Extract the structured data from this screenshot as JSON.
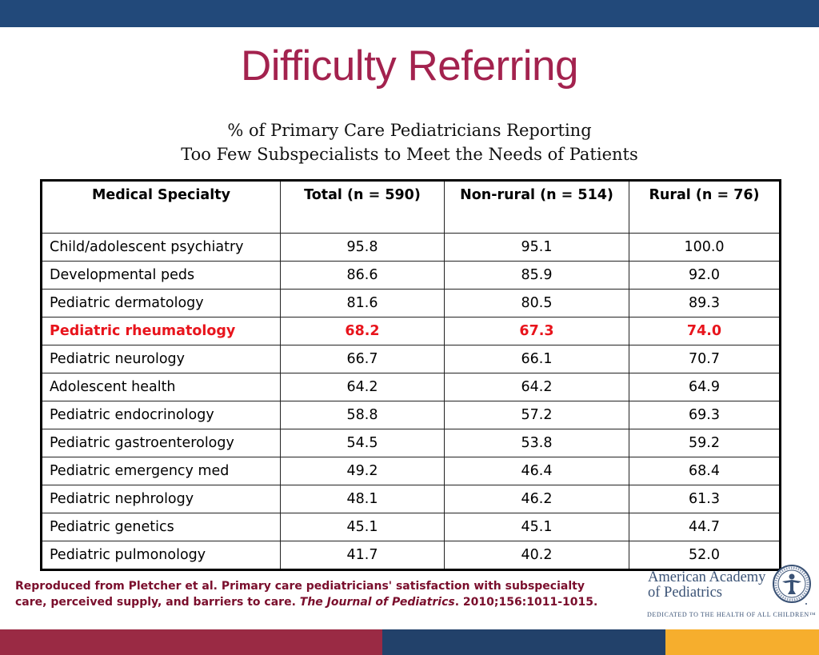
{
  "slide": {
    "title": "Difficulty Referring",
    "subtitle_lines": [
      "% of Primary Care Pediatricians Reporting",
      "Too Few Subspecialists to Meet the Needs of Patients"
    ],
    "colors": {
      "top_band": "#22497a",
      "title": "#a3224e",
      "highlight": "#e8141c",
      "citation": "#7a0e2c",
      "band_red": "#9a2a44",
      "band_blue": "#22416a",
      "band_gold": "#f6ae2d"
    }
  },
  "table": {
    "headers": [
      "Medical Specialty",
      "Total (n = 590)",
      "Non-rural (n = 514)",
      "Rural (n = 76)"
    ],
    "rows": [
      {
        "specialty": "Child/adolescent psychiatry",
        "total": "95.8",
        "nonrural": "95.1",
        "rural": "100.0",
        "highlight": false
      },
      {
        "specialty": "Developmental peds",
        "total": "86.6",
        "nonrural": "85.9",
        "rural": "92.0",
        "highlight": false
      },
      {
        "specialty": "Pediatric dermatology",
        "total": "81.6",
        "nonrural": "80.5",
        "rural": "89.3",
        "highlight": false
      },
      {
        "specialty": "Pediatric rheumatology",
        "total": "68.2",
        "nonrural": "67.3",
        "rural": "74.0",
        "highlight": true
      },
      {
        "specialty": "Pediatric neurology",
        "total": "66.7",
        "nonrural": "66.1",
        "rural": "70.7",
        "highlight": false
      },
      {
        "specialty": "Adolescent health",
        "total": "64.2",
        "nonrural": "64.2",
        "rural": "64.9",
        "highlight": false
      },
      {
        "specialty": "Pediatric endocrinology",
        "total": "58.8",
        "nonrural": "57.2",
        "rural": "69.3",
        "highlight": false
      },
      {
        "specialty": "Pediatric gastroenterology",
        "total": "54.5",
        "nonrural": "53.8",
        "rural": "59.2",
        "highlight": false
      },
      {
        "specialty": "Pediatric emergency med",
        "total": "49.2",
        "nonrural": "46.4",
        "rural": "68.4",
        "highlight": false
      },
      {
        "specialty": "Pediatric nephrology",
        "total": "48.1",
        "nonrural": "46.2",
        "rural": "61.3",
        "highlight": false
      },
      {
        "specialty": "Pediatric genetics",
        "total": "45.1",
        "nonrural": "45.1",
        "rural": "44.7",
        "highlight": false
      },
      {
        "specialty": "Pediatric pulmonology",
        "total": "41.7",
        "nonrural": "40.2",
        "rural": "52.0",
        "highlight": false
      }
    ]
  },
  "citation": {
    "line1": "Reproduced from Pletcher et al. Primary care pediatricians' satisfaction with subspecialty",
    "line2_prefix": "care, perceived supply, and barriers to care. ",
    "journal": "The Journal of Pediatrics",
    "line2_suffix": ". 2010;156:1011-1015."
  },
  "logo": {
    "name_line1": "American Academy",
    "name_line2": "of Pediatrics",
    "tagline": "DEDICATED TO THE HEALTH OF ALL CHILDREN™",
    "seal_icon": "aap-seal-icon"
  }
}
